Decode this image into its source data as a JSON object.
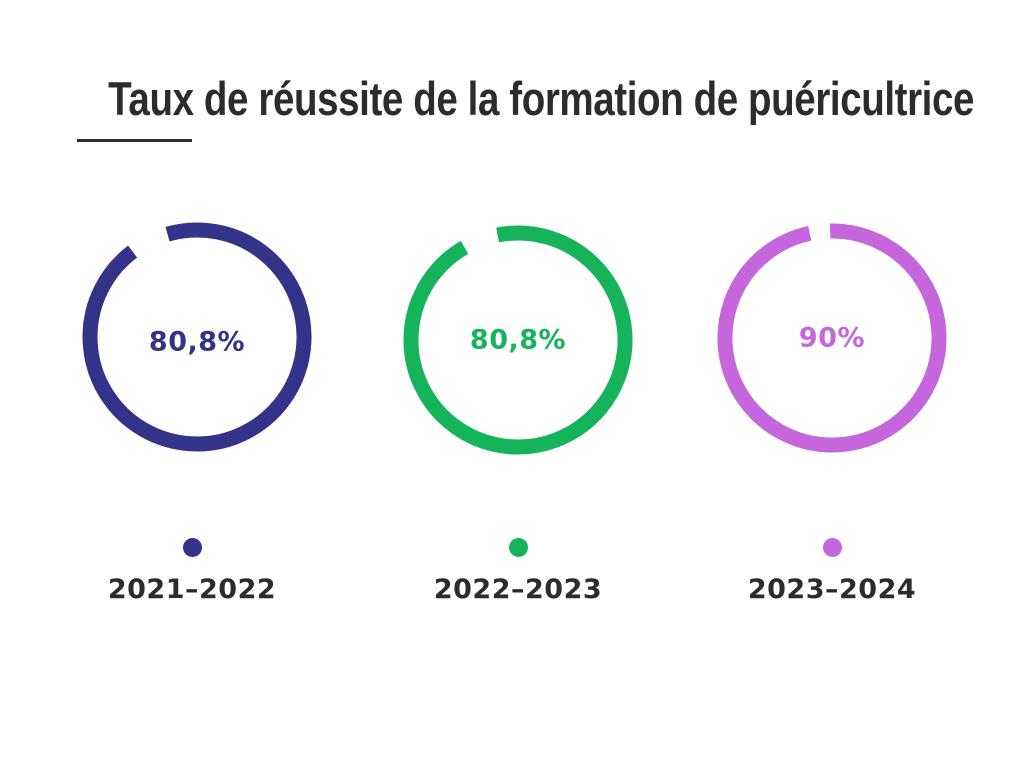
{
  "header": {
    "title": "Taux de réussite de la formation de puéricultrice",
    "title_color": "#2e2c2b"
  },
  "chart_data": {
    "type": "donut",
    "title": "Taux de réussite de la formation de puéricultrice",
    "unit": "%",
    "categories": [
      "2021–2022",
      "2022–2023",
      "2023–2024"
    ],
    "values": [
      80.8,
      80.8,
      90
    ],
    "value_labels": [
      "80,8%",
      "80,8%",
      "90%"
    ],
    "series": [
      {
        "name": "2021–2022",
        "value": 80.8,
        "value_label": "80,8%",
        "color": "#34338a",
        "gap_start_deg": -37,
        "gap_end_deg": -16
      },
      {
        "name": "2022–2023",
        "value": 80.8,
        "value_label": "80,8%",
        "color": "#16b45a",
        "gap_start_deg": -30,
        "gap_end_deg": -11
      },
      {
        "name": "2023–2024",
        "value": 90,
        "value_label": "90%",
        "color": "#c566dc",
        "gap_start_deg": -12,
        "gap_end_deg": -1
      }
    ],
    "legend_position": "bottom",
    "legend_marker": "dot",
    "background": "#ffffff"
  }
}
